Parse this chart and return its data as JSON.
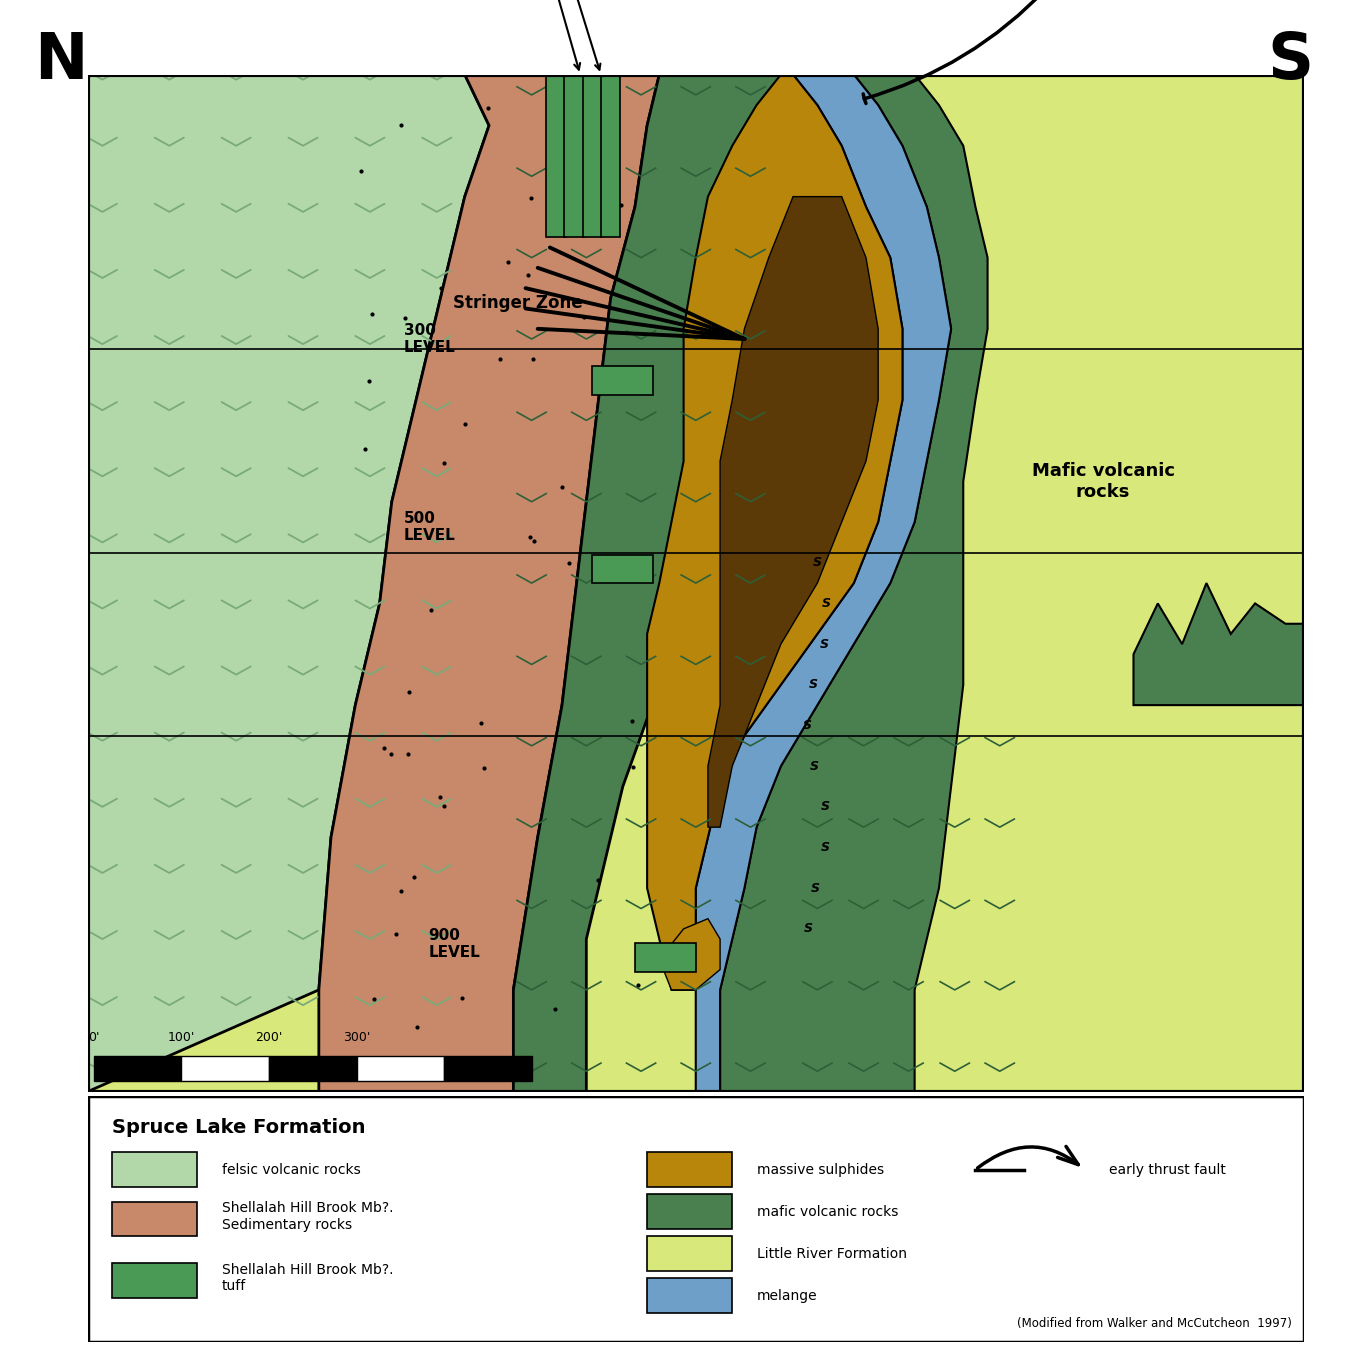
{
  "figure_width": 13.51,
  "figure_height": 13.56,
  "dpi": 100,
  "colors": {
    "felsic": "#b2d8aa",
    "sedimentary": "#c8896a",
    "tuff_green": "#4a9a55",
    "sulphide_gold": "#b8860b",
    "sulphide_dark": "#5c3a08",
    "mafic_green": "#4a8050",
    "little_river": "#d8e87a",
    "melange_blue": "#6e9fc8",
    "v_felsic": "#7aaa7a",
    "v_mafic": "#2d6038",
    "dot": "#000000"
  },
  "legend": {
    "title": "Spruce Lake Formation",
    "col1": [
      {
        "color": "#b2d8aa",
        "label": "felsic volcanic rocks"
      },
      {
        "color": "#c8896a",
        "label": "Shellalah Hill Brook Mb?.\nSedimentary rocks"
      },
      {
        "color": "#4a9a55",
        "label": "Shellalah Hill Brook Mb?.\ntuff"
      }
    ],
    "col2": [
      {
        "color": "#b8860b",
        "label": "massive sulphides"
      },
      {
        "color": "#4a8050",
        "label": "mafic volcanic rocks"
      },
      {
        "color": "#d8e87a",
        "label": "Little River Formation"
      },
      {
        "color": "#6e9fc8",
        "label": "melange"
      }
    ],
    "fault_label": "early thrust fault",
    "citation": "(Modified from Walker and McCutcheon  1997)"
  }
}
